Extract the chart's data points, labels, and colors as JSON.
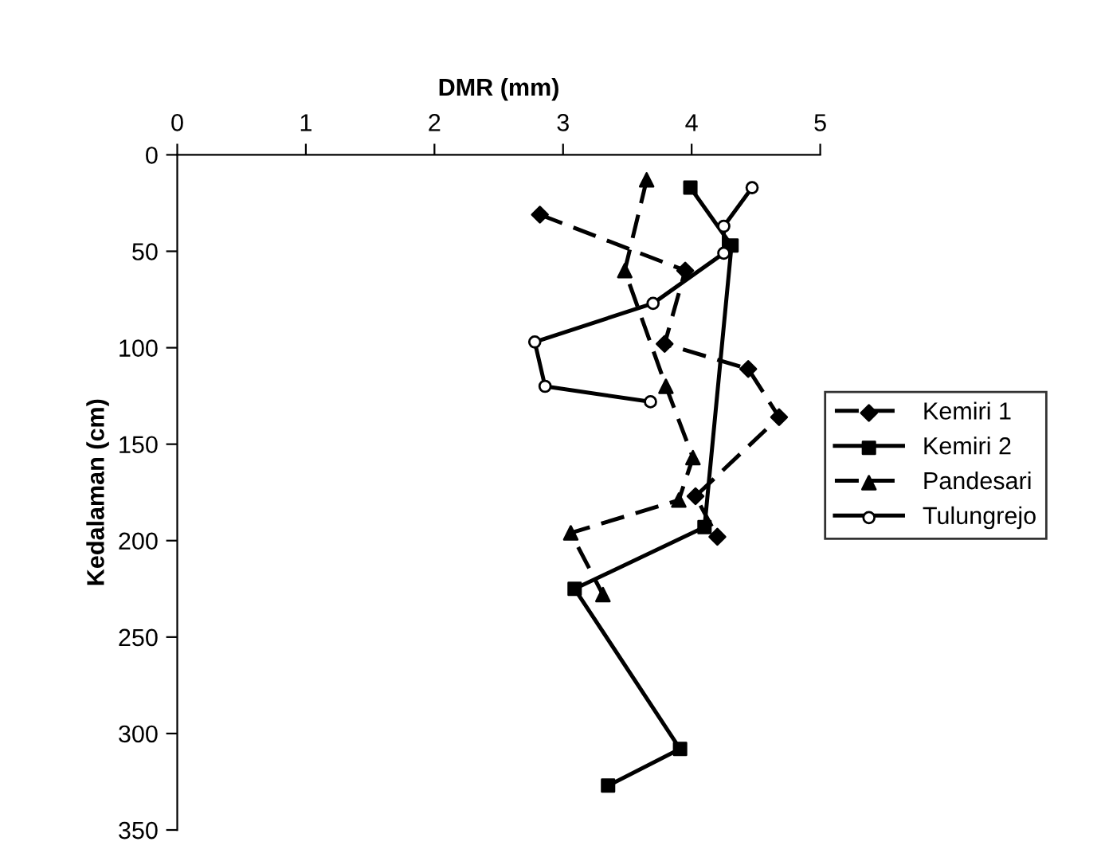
{
  "chart_data": {
    "type": "line",
    "xlabel": "DMR (mm)",
    "ylabel": "Kedalaman (cm)",
    "xlim": [
      0,
      5
    ],
    "xticks": [
      0,
      1,
      2,
      3,
      4,
      5
    ],
    "ylim": [
      350,
      0
    ],
    "yticks": [
      0,
      50,
      100,
      150,
      200,
      250,
      300,
      350
    ],
    "grid": false,
    "legend": "right",
    "series": [
      {
        "name": "Kemiri 1",
        "color": "#000000",
        "marker": "diamond",
        "line_style": "dashed",
        "x": [
          2.82,
          3.95,
          3.79,
          4.44,
          4.68,
          4.03,
          4.2
        ],
        "values": [
          31,
          60,
          98,
          111,
          136,
          177,
          198
        ]
      },
      {
        "name": "Kemiri 2",
        "color": "#000000",
        "marker": "square",
        "line_style": "solid",
        "x": [
          3.99,
          4.31,
          4.1,
          3.09,
          3.91,
          3.35
        ],
        "values": [
          17,
          47,
          193,
          225,
          308,
          327
        ]
      },
      {
        "name": "Pandesari",
        "color": "#000000",
        "marker": "triangle",
        "line_style": "dashed",
        "x": [
          3.65,
          3.48,
          3.8,
          4.01,
          3.9,
          3.06,
          3.31
        ],
        "values": [
          13,
          60,
          120,
          157,
          179,
          196,
          228
        ]
      },
      {
        "name": "Tulungrejo",
        "color": "#000000",
        "marker": "circle",
        "line_style": "solid",
        "x": [
          4.47,
          4.25,
          4.25,
          3.7,
          2.78,
          2.86,
          3.68
        ],
        "values": [
          17,
          37,
          51,
          77,
          97,
          120,
          128
        ]
      }
    ]
  }
}
